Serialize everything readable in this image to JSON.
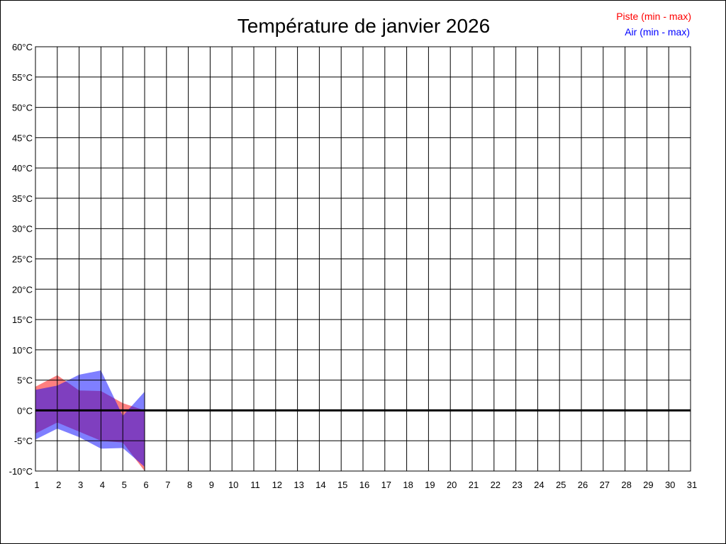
{
  "chart_data": {
    "type": "area",
    "title": "Température de janvier 2026",
    "x": [
      1,
      2,
      3,
      4,
      5,
      6
    ],
    "x_ticks": [
      1,
      2,
      3,
      4,
      5,
      6,
      7,
      8,
      9,
      10,
      11,
      12,
      13,
      14,
      15,
      16,
      17,
      18,
      19,
      20,
      21,
      22,
      23,
      24,
      25,
      26,
      27,
      28,
      29,
      30,
      31
    ],
    "xlim": [
      1,
      31
    ],
    "y_ticks": [
      -10,
      -5,
      0,
      5,
      10,
      15,
      20,
      25,
      30,
      35,
      40,
      45,
      50,
      55,
      60
    ],
    "y_tick_labels": [
      "-10°C",
      "-5°C",
      "0°C",
      "5°C",
      "10°C",
      "15°C",
      "20°C",
      "25°C",
      "30°C",
      "35°C",
      "40°C",
      "45°C",
      "50°C",
      "55°C",
      "60°C"
    ],
    "ylim": [
      -10,
      60
    ],
    "grid": true,
    "zero_line": true,
    "legend_position": "top-right",
    "series": [
      {
        "name": "Piste (min - max)",
        "color": "#ff0000",
        "min": [
          -3.8,
          -2.0,
          -3.5,
          -5.0,
          -5.3,
          -10.0
        ],
        "max": [
          3.9,
          5.8,
          3.3,
          3.2,
          1.2,
          0.0
        ]
      },
      {
        "name": "Air (min - max)",
        "color": "#0000ff",
        "min": [
          -4.8,
          -3.0,
          -4.4,
          -6.3,
          -6.2,
          -9.3
        ],
        "max": [
          3.4,
          4.1,
          5.9,
          6.6,
          -0.9,
          3.1
        ]
      }
    ]
  }
}
